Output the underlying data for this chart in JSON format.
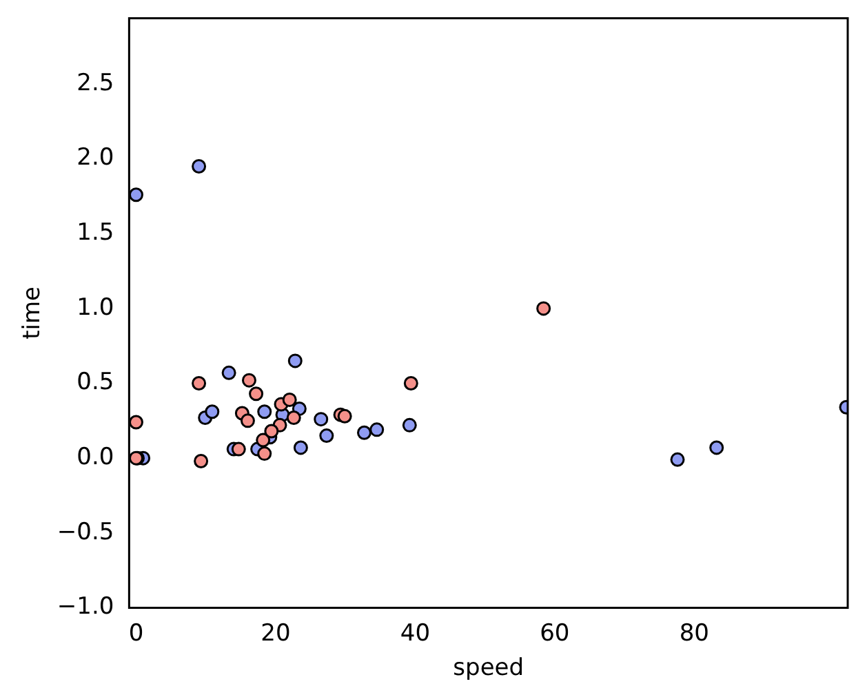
{
  "chart_data": {
    "type": "scatter",
    "xlabel": "speed",
    "ylabel": "time",
    "xlim": [
      -1,
      102
    ],
    "ylim": [
      -1,
      2.94
    ],
    "xticks": [
      0,
      20,
      40,
      60,
      80
    ],
    "yticks": [
      {
        "value": -1,
        "label": "−1.0"
      },
      {
        "value": -0.5,
        "label": "−0.5"
      },
      {
        "value": 0,
        "label": "0.0"
      },
      {
        "value": 0.5,
        "label": "0.5"
      },
      {
        "value": 1,
        "label": "1.0"
      },
      {
        "value": 1.5,
        "label": "1.5"
      },
      {
        "value": 2,
        "label": "2.0"
      },
      {
        "value": 2.5,
        "label": "2.5"
      }
    ],
    "grid": false,
    "legend": false,
    "marker": "circle",
    "series": [
      {
        "color": "#8f9cf2",
        "x": [
          0,
          9,
          9.9,
          10.9,
          13.3,
          22.8,
          18.4,
          21,
          23.4,
          26.5,
          27.3,
          32.7,
          34.5,
          39.2,
          14,
          17.4,
          19.2,
          23.6,
          1,
          0.2,
          77.6,
          83.2,
          101.8
        ],
        "values": [
          1.76,
          1.95,
          0.27,
          0.31,
          0.57,
          0.65,
          0.31,
          0.29,
          0.33,
          0.26,
          0.15,
          0.17,
          0.19,
          0.22,
          0.06,
          0.06,
          0.14,
          0.07,
          0,
          0,
          -0.01,
          0.07,
          0.34
        ]
      },
      {
        "color": "#f4908a",
        "x": [
          0,
          0,
          9,
          9.3,
          16.2,
          17.2,
          15.2,
          16,
          18.2,
          18.4,
          14.7,
          20.6,
          20.8,
          22,
          22.6,
          29.3,
          29.9,
          39.4,
          58.4,
          19.4
        ],
        "values": [
          0.24,
          0,
          0.5,
          -0.02,
          0.52,
          0.43,
          0.3,
          0.25,
          0.12,
          0.03,
          0.06,
          0.22,
          0.36,
          0.39,
          0.27,
          0.29,
          0.28,
          0.5,
          1.0,
          0.18
        ]
      }
    ]
  }
}
